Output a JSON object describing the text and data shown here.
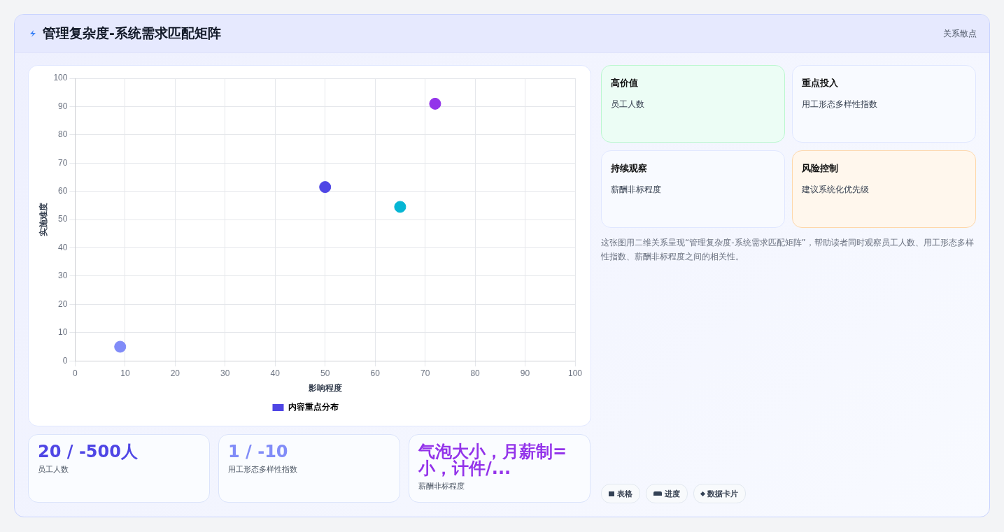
{
  "chart_data": {
    "type": "scatter",
    "title": "管理复杂度-系统需求匹配矩阵",
    "xlabel": "影响程度",
    "ylabel": "实施难度",
    "series": [
      {
        "name": "内容重点分布",
        "color": "#4f46e5",
        "x": [
          9,
          50,
          65,
          72
        ],
        "values": [
          5,
          61.5,
          54.5,
          91
        ],
        "colors": [
          "#818cf8",
          "#4f46e5",
          "#06b6d4",
          "#9333ea"
        ]
      }
    ],
    "xlim": [
      0,
      100
    ],
    "xticks": [
      0,
      10,
      20,
      30,
      40,
      50,
      60,
      70,
      80,
      90,
      100
    ],
    "ylim": [
      0,
      100
    ],
    "yticks": [
      0,
      10,
      20,
      30,
      40,
      50,
      60,
      70,
      80,
      90,
      100
    ],
    "grid": true,
    "legend": "bottom",
    "marker": "circle",
    "annotations": [
      "关系散点",
      "高价值",
      "员工人数",
      "重点投入",
      "用工形态多样性指数",
      "持续观察",
      "薪酬非标程度",
      "风险控制",
      "建议系统化优先级",
      "这张图用二维关系呈现“管理复杂度-系统需求匹配矩阵”，帮助读者同时观察员工人数、用工形态多样性指数、薪酬非标程度之间的相关性。",
      "20 / -500人",
      "员工人数",
      "1 / -10",
      "用工形态多样性指数",
      "气泡大小，月薪制=小，计件/...",
      "薪酬非标程度",
      "表格",
      "进度",
      "数据卡片"
    ]
  }
}
